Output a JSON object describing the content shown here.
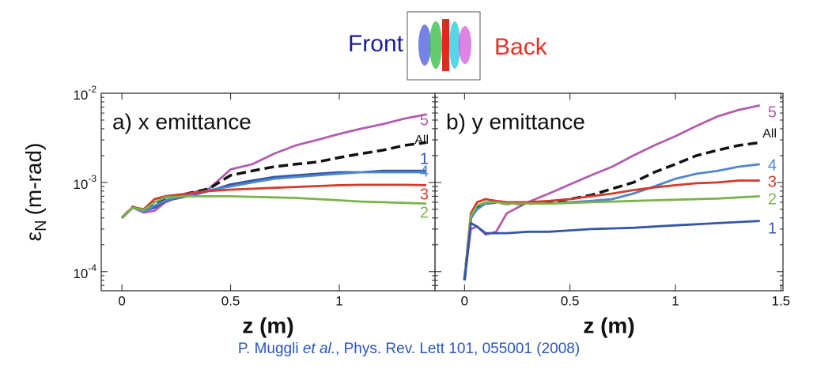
{
  "header": {
    "front": "Front",
    "back": "Back"
  },
  "chart_data": [
    {
      "type": "line",
      "title": "a) x emittance",
      "xlabel": "z (m)",
      "ylabel": {
        "symbol": "ε",
        "subscript": "N",
        "unit": "(m-rad)"
      },
      "log_y": true,
      "xlim": [
        -0.095,
        1.44
      ],
      "ylim": [
        6.1e-05,
        0.01
      ],
      "xticks": [
        0,
        0.5,
        1
      ],
      "yticks": [
        {
          "value": 0.0001,
          "base": "10",
          "exponent": "-4"
        },
        {
          "value": 0.001,
          "base": "10",
          "exponent": "-3"
        },
        {
          "value": 0.01,
          "base": "10",
          "exponent": "-2"
        }
      ],
      "x": [
        0,
        0.05,
        0.1,
        0.15,
        0.2,
        0.3,
        0.4,
        0.5,
        0.6,
        0.7,
        0.8,
        0.9,
        1.0,
        1.1,
        1.2,
        1.3,
        1.4
      ],
      "series": [
        {
          "name": "5",
          "color": "#b35cad",
          "style": "solid",
          "values": [
            0.0004,
            0.00052,
            0.00046,
            0.00048,
            0.0006,
            0.00075,
            0.00085,
            0.0014,
            0.0016,
            0.0021,
            0.0026,
            0.003,
            0.0035,
            0.004,
            0.0045,
            0.0052,
            0.0058
          ]
        },
        {
          "name": "All",
          "color": "#111111",
          "style": "dashed",
          "values": [
            0.0004,
            0.00053,
            0.00048,
            0.00055,
            0.00065,
            0.00075,
            0.00085,
            0.0012,
            0.00135,
            0.0015,
            0.0016,
            0.0017,
            0.0019,
            0.0021,
            0.0023,
            0.0026,
            0.0028
          ]
        },
        {
          "name": "1",
          "color": "#3455a8",
          "style": "solid",
          "values": [
            0.0004,
            0.00052,
            0.00048,
            0.00052,
            0.00062,
            0.0007,
            0.0008,
            0.00095,
            0.00105,
            0.00115,
            0.0012,
            0.00125,
            0.0013,
            0.0013,
            0.00135,
            0.00135,
            0.00135
          ]
        },
        {
          "name": "4",
          "color": "#4f86cc",
          "style": "solid",
          "values": [
            0.0004,
            0.00052,
            0.00047,
            0.00055,
            0.00063,
            0.00072,
            0.00082,
            0.0009,
            0.001,
            0.0011,
            0.00115,
            0.0012,
            0.00125,
            0.0013,
            0.0013,
            0.0013,
            0.0013
          ]
        },
        {
          "name": "3",
          "color": "#d43a2c",
          "style": "solid",
          "values": [
            0.0004,
            0.00053,
            0.0005,
            0.00065,
            0.0007,
            0.00075,
            0.0008,
            0.00083,
            0.00085,
            0.00087,
            0.00089,
            0.00091,
            0.00093,
            0.00094,
            0.00094,
            0.00094,
            0.00093
          ]
        },
        {
          "name": "2",
          "color": "#7cb24c",
          "style": "solid",
          "values": [
            0.0004,
            0.00052,
            0.00049,
            0.0006,
            0.00068,
            0.0007,
            0.0007,
            0.0007,
            0.00069,
            0.00068,
            0.00067,
            0.00065,
            0.00063,
            0.00061,
            0.0006,
            0.00059,
            0.00058
          ]
        }
      ]
    },
    {
      "type": "line",
      "title": "b) y emittance",
      "xlabel": "z (m)",
      "log_y": true,
      "xlim": [
        -0.14,
        1.51
      ],
      "ylim": [
        6.1e-05,
        0.01
      ],
      "xticks": [
        0,
        0.5,
        1,
        1.5
      ],
      "yticks": [
        0.0001,
        0.001,
        0.01
      ],
      "x": [
        0,
        0.03,
        0.06,
        0.1,
        0.15,
        0.2,
        0.3,
        0.4,
        0.5,
        0.6,
        0.7,
        0.8,
        0.9,
        1.0,
        1.1,
        1.2,
        1.3,
        1.4
      ],
      "series": [
        {
          "name": "5",
          "color": "#b35cad",
          "style": "solid",
          "values": [
            8e-05,
            0.0003,
            0.00032,
            0.00026,
            0.00028,
            0.00045,
            0.0006,
            0.00075,
            0.00095,
            0.0012,
            0.0015,
            0.002,
            0.0026,
            0.0033,
            0.0043,
            0.0055,
            0.0065,
            0.0073
          ]
        },
        {
          "name": "All",
          "color": "#111111",
          "style": "dashed",
          "values": [
            8e-05,
            0.0004,
            0.00052,
            0.00058,
            0.0006,
            0.00058,
            0.00058,
            0.0006,
            0.00065,
            0.00072,
            0.00085,
            0.001,
            0.0013,
            0.0016,
            0.002,
            0.0023,
            0.0026,
            0.0028
          ]
        },
        {
          "name": "4",
          "color": "#4f86cc",
          "style": "solid",
          "values": [
            8e-05,
            0.0004,
            0.0005,
            0.00058,
            0.0006,
            0.00059,
            0.00058,
            0.00058,
            0.0006,
            0.00062,
            0.00065,
            0.00075,
            0.0009,
            0.0011,
            0.00125,
            0.00135,
            0.0015,
            0.0016
          ]
        },
        {
          "name": "3",
          "color": "#d43a2c",
          "style": "solid",
          "values": [
            8e-05,
            0.00045,
            0.0006,
            0.00065,
            0.00062,
            0.0006,
            0.0006,
            0.00062,
            0.00065,
            0.0007,
            0.00075,
            0.00082,
            0.00088,
            0.00093,
            0.00098,
            0.001,
            0.00105,
            0.00105
          ]
        },
        {
          "name": "2",
          "color": "#7cb24c",
          "style": "solid",
          "values": [
            8e-05,
            0.00042,
            0.00055,
            0.0006,
            0.0006,
            0.00058,
            0.00058,
            0.00058,
            0.00059,
            0.0006,
            0.00061,
            0.00062,
            0.00063,
            0.00064,
            0.00065,
            0.00066,
            0.00068,
            0.0007
          ]
        },
        {
          "name": "1",
          "color": "#3455a8",
          "style": "solid",
          "values": [
            8e-05,
            0.00035,
            0.00032,
            0.00027,
            0.00027,
            0.00027,
            0.00028,
            0.00028,
            0.00029,
            0.0003,
            0.000305,
            0.00031,
            0.00032,
            0.00033,
            0.00034,
            0.00035,
            0.00036,
            0.00037
          ]
        }
      ]
    }
  ],
  "citation": {
    "author": "P. Muggli ",
    "etal": "et al.",
    "rest": ", Phys. Rev. Lett 101, 055001 (2008)"
  }
}
